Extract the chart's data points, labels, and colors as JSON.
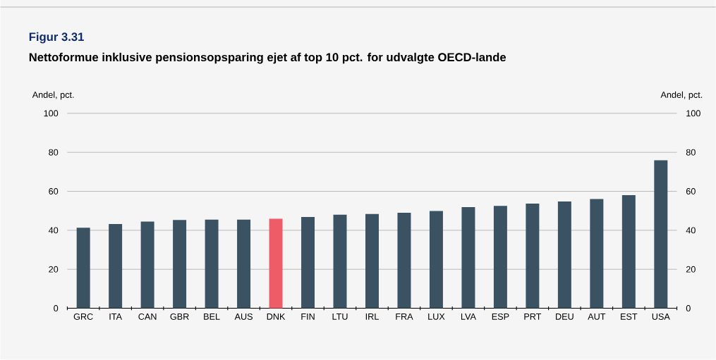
{
  "chart_data": {
    "type": "bar",
    "title": "Figur 3.31",
    "subtitle": "Nettoformue inklusive pensionsopsparing ejet af top 10 pct. for udvalgte OECD-lande",
    "ylabel": "Andel, pct.",
    "y2label": "Andel, pct.",
    "categories": [
      "GRC",
      "ITA",
      "CAN",
      "GBR",
      "BEL",
      "AUS",
      "DNK",
      "FIN",
      "LTU",
      "IRL",
      "FRA",
      "LUX",
      "LVA",
      "ESP",
      "PRT",
      "DEU",
      "AUT",
      "EST",
      "USA"
    ],
    "values": [
      41.3,
      43.2,
      44.5,
      45.3,
      45.5,
      45.5,
      45.9,
      46.8,
      48.0,
      48.4,
      49.0,
      49.9,
      51.9,
      52.5,
      53.7,
      54.8,
      56.0,
      58.0,
      75.9
    ],
    "colors": [
      "#3b5263",
      "#3b5263",
      "#3b5263",
      "#3b5263",
      "#3b5263",
      "#3b5263",
      "#ee5d67",
      "#3b5263",
      "#3b5263",
      "#3b5263",
      "#3b5263",
      "#3b5263",
      "#3b5263",
      "#3b5263",
      "#3b5263",
      "#3b5263",
      "#3b5263",
      "#3b5263",
      "#3b5263"
    ],
    "ylim": [
      0,
      100
    ],
    "yticks": [
      0,
      20,
      40,
      60,
      80,
      100
    ],
    "y2lim": [
      0,
      100
    ],
    "y2ticks": [
      0,
      20,
      40,
      60,
      80,
      100
    ],
    "grid": "y"
  }
}
